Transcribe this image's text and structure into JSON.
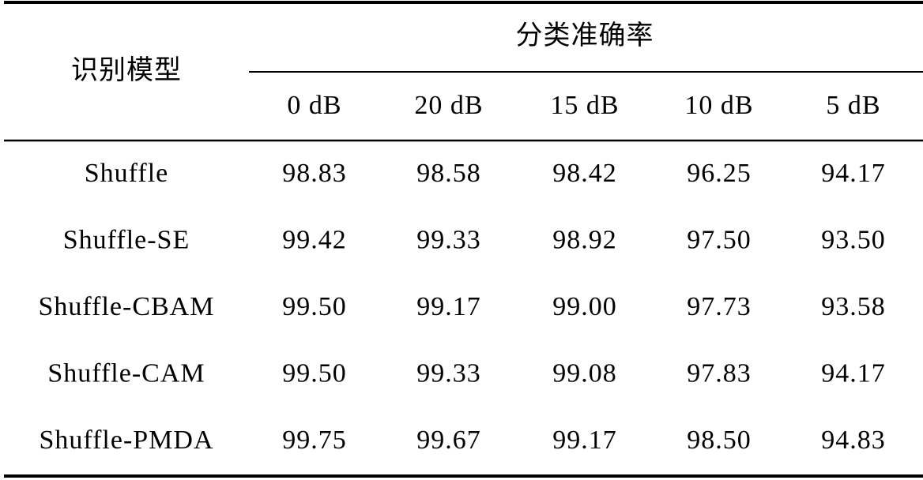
{
  "table": {
    "header": {
      "model": "识别模型",
      "group": "分类准确率",
      "columns": [
        "0 dB",
        "20 dB",
        "15 dB",
        "10 dB",
        "5 dB"
      ]
    },
    "rows": [
      [
        "Shuffle",
        "98.83",
        "98.58",
        "98.42",
        "96.25",
        "94.17"
      ],
      [
        "Shuffle-SE",
        "99.42",
        "99.33",
        "98.92",
        "97.50",
        "93.50"
      ],
      [
        "Shuffle-CBAM",
        "99.50",
        "99.17",
        "99.00",
        "97.73",
        "93.58"
      ],
      [
        "Shuffle-CAM",
        "99.50",
        "99.33",
        "99.08",
        "97.83",
        "94.17"
      ],
      [
        "Shuffle-PMDA",
        "99.75",
        "99.67",
        "99.17",
        "98.50",
        "94.83"
      ]
    ]
  }
}
